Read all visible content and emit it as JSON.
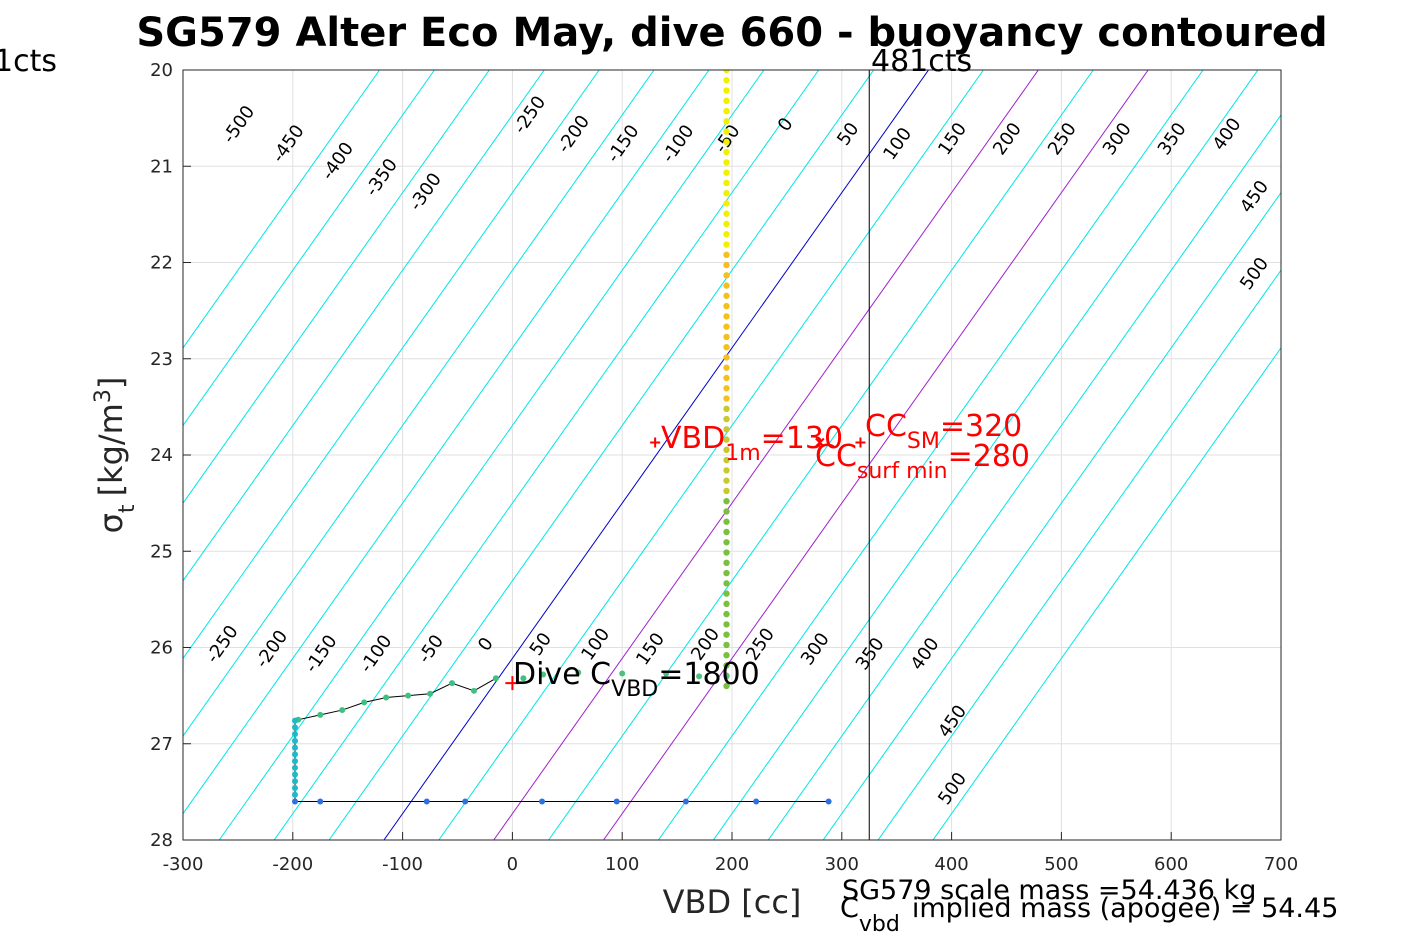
{
  "chart_data": {
    "type": "line",
    "title": "SG579 Alter Eco May, dive 660 - buoyancy contoured",
    "xlabel": "VBD [cc]",
    "ylabel_main": "σ",
    "ylabel_sub": "t",
    "ylabel_unit": "[kg/m",
    "ylabel_sup": "3",
    "ylabel_close": "]",
    "xlim": [
      -300,
      700
    ],
    "ylim": [
      20,
      28
    ],
    "y_reversed": true,
    "grid": true,
    "xticks": [
      -300,
      -200,
      -100,
      0,
      100,
      200,
      300,
      400,
      500,
      600,
      700
    ],
    "yticks": [
      20,
      21,
      22,
      23,
      24,
      25,
      26,
      27,
      28
    ],
    "contour_levels": [
      -500,
      -450,
      -400,
      -350,
      -300,
      -250,
      -200,
      -150,
      -100,
      -50,
      0,
      50,
      100,
      150,
      200,
      250,
      300,
      350,
      400,
      450,
      500
    ],
    "contour_labels_upper": [
      {
        "text": "-500",
        "x": -245,
        "y": 20.6
      },
      {
        "text": "-450",
        "x": -200,
        "y": 20.8
      },
      {
        "text": "-400",
        "x": -155,
        "y": 20.98
      },
      {
        "text": "-350",
        "x": -115,
        "y": 21.15
      },
      {
        "text": "-300",
        "x": -75,
        "y": 21.3
      },
      {
        "text": "-250",
        "x": 20,
        "y": 20.5
      },
      {
        "text": "-200",
        "x": 60,
        "y": 20.7
      },
      {
        "text": "-150",
        "x": 105,
        "y": 20.8
      },
      {
        "text": "-100",
        "x": 155,
        "y": 20.8
      },
      {
        "text": "-50",
        "x": 200,
        "y": 20.75
      },
      {
        "text": "0",
        "x": 253,
        "y": 20.6
      },
      {
        "text": "50",
        "x": 310,
        "y": 20.7
      },
      {
        "text": "100",
        "x": 355,
        "y": 20.8
      },
      {
        "text": "150",
        "x": 405,
        "y": 20.75
      },
      {
        "text": "200",
        "x": 455,
        "y": 20.75
      },
      {
        "text": "250",
        "x": 505,
        "y": 20.75
      },
      {
        "text": "300",
        "x": 555,
        "y": 20.75
      },
      {
        "text": "350",
        "x": 605,
        "y": 20.75
      },
      {
        "text": "400",
        "x": 655,
        "y": 20.7
      },
      {
        "text": "450",
        "x": 680,
        "y": 21.35
      },
      {
        "text": "500",
        "x": 680,
        "y": 22.15
      }
    ],
    "contour_labels_lower": [
      {
        "text": "-250",
        "x": -260,
        "y": 26.0
      },
      {
        "text": "-200",
        "x": -215,
        "y": 26.05
      },
      {
        "text": "-150",
        "x": -170,
        "y": 26.1
      },
      {
        "text": "-100",
        "x": -120,
        "y": 26.1
      },
      {
        "text": "-50",
        "x": -70,
        "y": 26.05
      },
      {
        "text": "0",
        "x": -20,
        "y": 26.0
      },
      {
        "text": "50",
        "x": 30,
        "y": 26.0
      },
      {
        "text": "100",
        "x": 80,
        "y": 26.0
      },
      {
        "text": "150",
        "x": 130,
        "y": 26.05
      },
      {
        "text": "200",
        "x": 180,
        "y": 26.0
      },
      {
        "text": "250",
        "x": 230,
        "y": 26.0
      },
      {
        "text": "300",
        "x": 280,
        "y": 26.05
      },
      {
        "text": "350",
        "x": 330,
        "y": 26.1
      },
      {
        "text": "400",
        "x": 380,
        "y": 26.1
      },
      {
        "text": "450",
        "x": 405,
        "y": 26.8
      },
      {
        "text": "500",
        "x": 405,
        "y": 27.5
      }
    ],
    "contour_colors": {
      "default": "#00e5e5",
      "zero": "#0000cc",
      "highlight": "#a020d0"
    },
    "highlight_levels": [
      100,
      200
    ],
    "vertical_line_x": 325,
    "top_labels": [
      "481cts",
      "1cts"
    ],
    "profile_upper": {
      "x": 195,
      "y_start": 20.0,
      "y_end": 26.4
    },
    "profile_lower": {
      "path": [
        [
          -15,
          26.32
        ],
        [
          -35,
          26.45
        ],
        [
          -55,
          26.37
        ],
        [
          -75,
          26.48
        ],
        [
          -95,
          26.5
        ],
        [
          -115,
          26.52
        ],
        [
          -135,
          26.57
        ],
        [
          -155,
          26.65
        ],
        [
          -175,
          26.7
        ],
        [
          -195,
          26.75
        ],
        [
          -198,
          26.76
        ],
        [
          -198,
          27.6
        ],
        [
          290,
          27.6
        ]
      ],
      "bottom_points": [
        -198,
        -175,
        -78,
        -43,
        27,
        95,
        158,
        222,
        288
      ],
      "slope_points": [
        [
          10,
          26.32
        ],
        [
          -15,
          26.32
        ],
        [
          -35,
          26.45
        ],
        [
          -55,
          26.37
        ],
        [
          -75,
          26.48
        ],
        [
          -95,
          26.5
        ],
        [
          -115,
          26.52
        ],
        [
          -135,
          26.57
        ],
        [
          -155,
          26.65
        ],
        [
          -175,
          26.7
        ],
        [
          -195,
          26.75
        ]
      ],
      "ramp_points": [
        [
          28,
          26.28
        ],
        [
          60,
          26.26
        ],
        [
          100,
          26.27
        ],
        [
          140,
          26.27
        ],
        [
          170,
          26.3
        ],
        [
          195,
          26.3
        ]
      ]
    },
    "annotations": {
      "vbd_prefix": "VBD",
      "vbd_sub": "1m",
      "vbd_val": "=130",
      "cc_sm_prefix": "CC",
      "cc_sm_sub": "SM",
      "cc_sm_val": "=320",
      "cc_surf_prefix": "CC",
      "cc_surf_sub": "surf min",
      "cc_surf_val": "=280",
      "dive_prefix": "Dive C",
      "dive_sub": "VBD",
      "dive_val": "=1800"
    },
    "markers": {
      "vbd1m": {
        "x": 130,
        "y": 23.87
      },
      "ccsm": {
        "x": 317,
        "y": 23.87
      },
      "ccsurf": {
        "x": 280,
        "y": 23.87
      },
      "dive": {
        "x": 0,
        "y": 26.37
      }
    },
    "footer": {
      "line1": "SG579 scale mass =54.436 kg",
      "line2_prefix": "C",
      "line2_sub": "vbd",
      "line2_rest": "implied mass (apogee) = 54.45"
    }
  }
}
